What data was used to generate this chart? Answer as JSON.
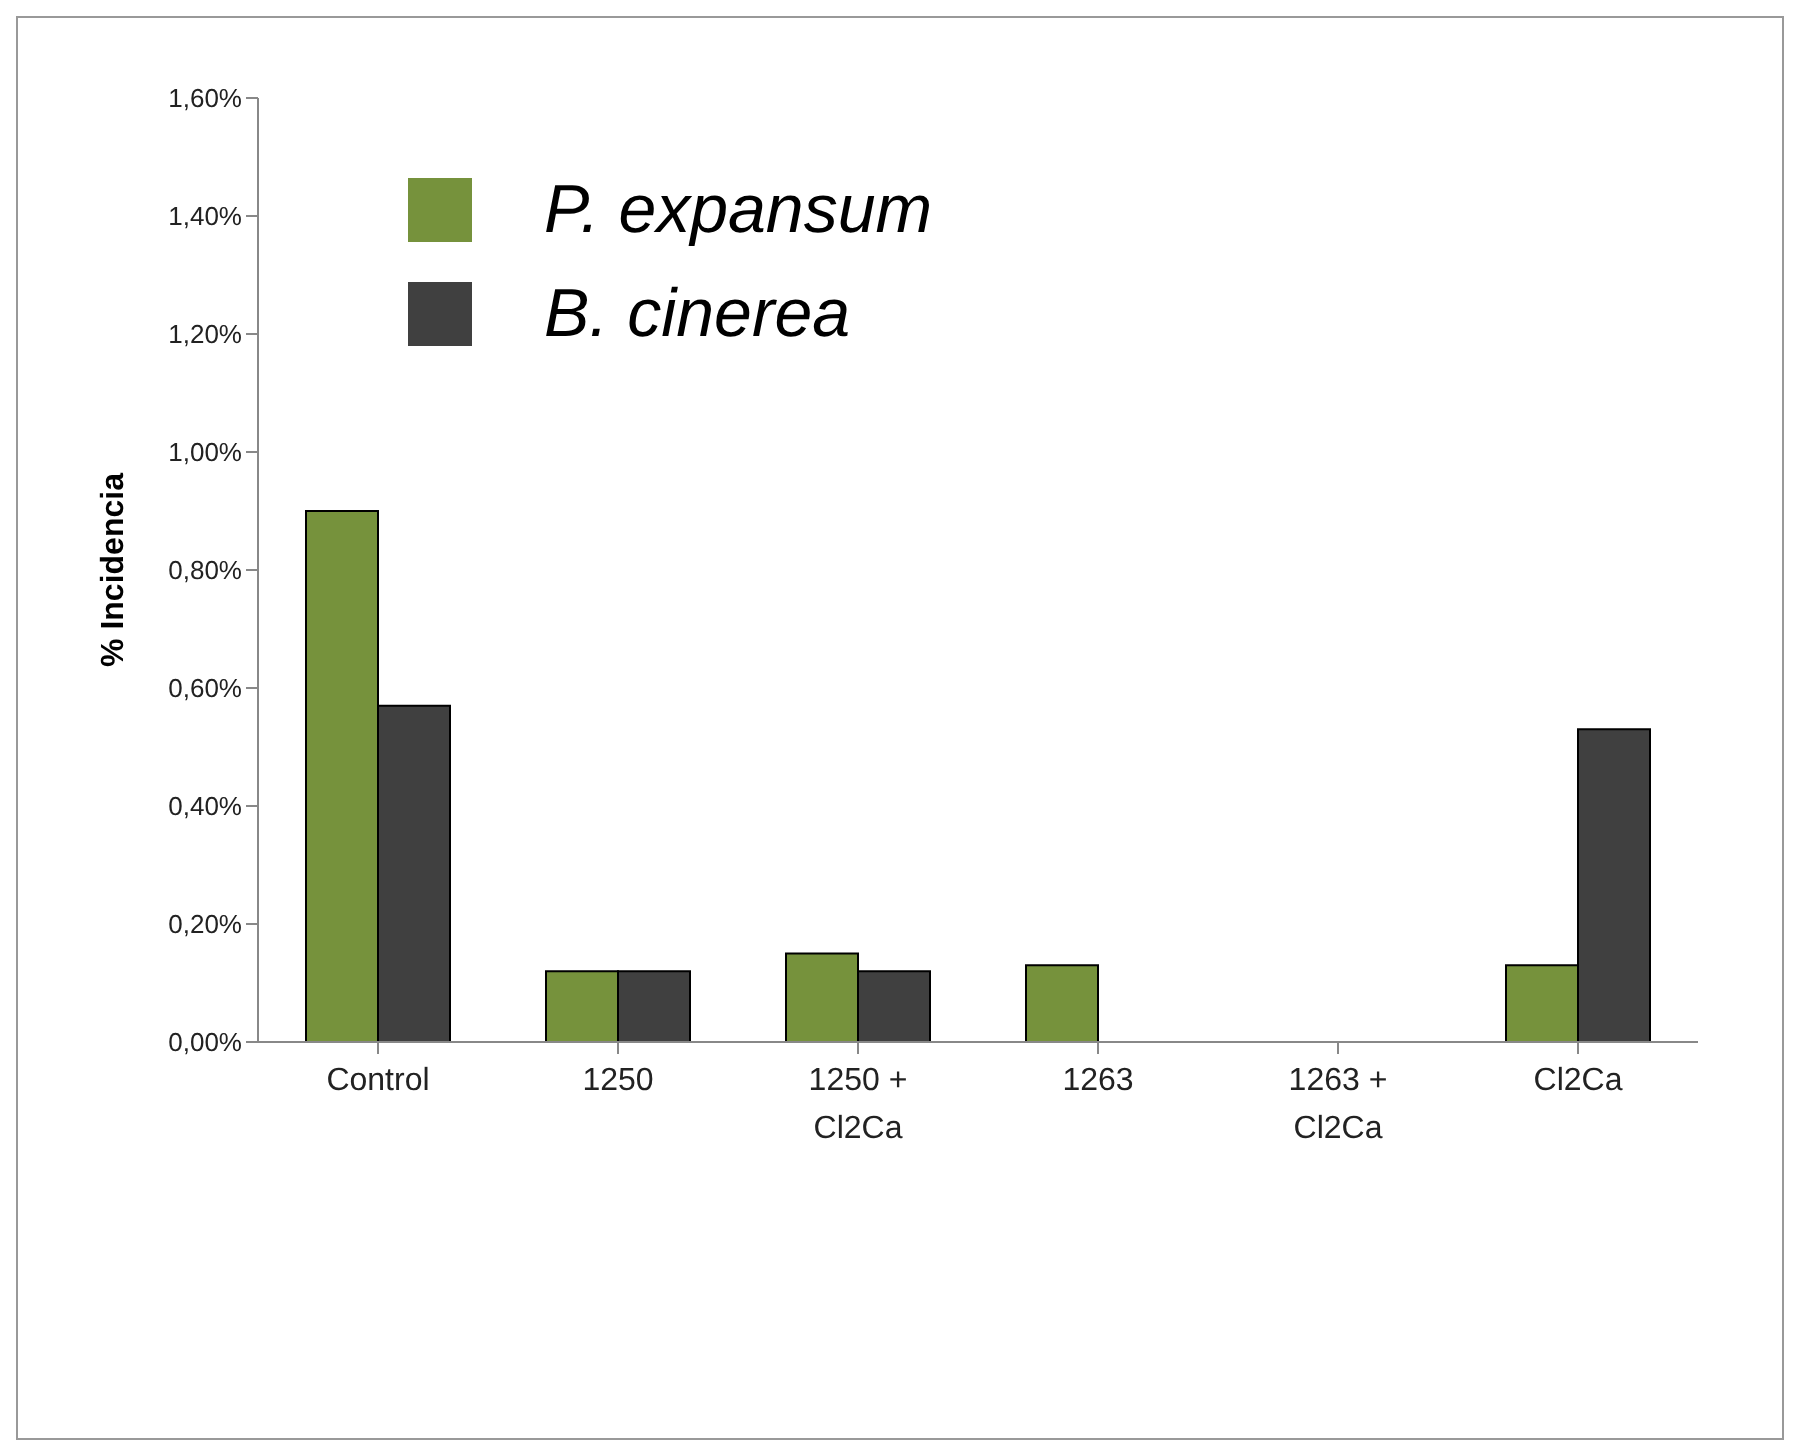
{
  "chart_data": {
    "type": "bar",
    "ylabel": "% Incidencia",
    "categories": [
      "Control",
      "1250",
      "1250 + Cl2Ca",
      "1263",
      "1263 + Cl2Ca",
      "Cl2Ca"
    ],
    "series": [
      {
        "name": "P. expansum",
        "color": "#76923c",
        "values": [
          0.9,
          0.12,
          0.15,
          0.13,
          0,
          0.13
        ]
      },
      {
        "name": "B. cinerea",
        "color": "#404040",
        "values": [
          0.57,
          0.12,
          0.12,
          0,
          0,
          0.53
        ]
      }
    ],
    "ylim": [
      0,
      1.6
    ],
    "yticks": [
      {
        "value": 0,
        "label": "0,00%"
      },
      {
        "value": 0.2,
        "label": "0,20%"
      },
      {
        "value": 0.4,
        "label": "0,40%"
      },
      {
        "value": 0.6,
        "label": "0,60%"
      },
      {
        "value": 0.8,
        "label": "0,80%"
      },
      {
        "value": 1,
        "label": "1,00%"
      },
      {
        "value": 1.2,
        "label": "1,20%"
      },
      {
        "value": 1.4,
        "label": "1,40%"
      },
      {
        "value": 1.6,
        "label": "1,60%"
      }
    ],
    "grid": false,
    "legend": "top left"
  }
}
